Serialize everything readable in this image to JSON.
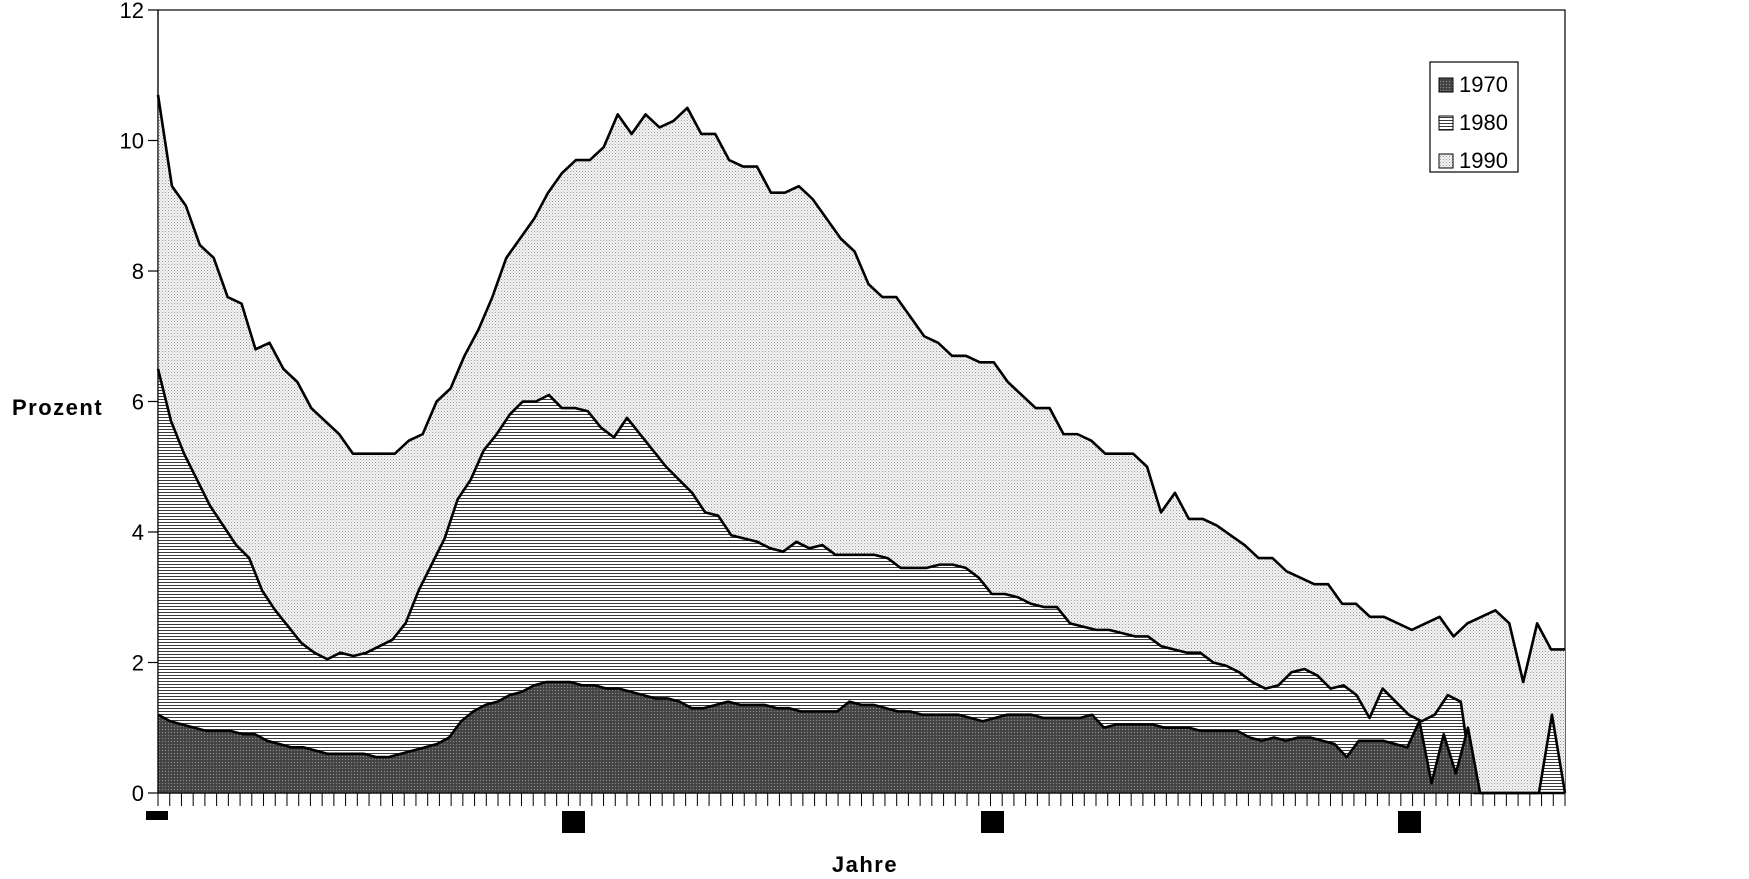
{
  "chart_data": {
    "type": "area",
    "stacked": false,
    "xlabel": "Jahre",
    "ylabel": "Prozent",
    "ylim": [
      0,
      12
    ],
    "yticks": [
      "0",
      "2",
      "4",
      "6",
      "8",
      "10",
      "12"
    ],
    "xticks": [],
    "grid": false,
    "legend": {
      "placement": "top-right"
    },
    "colors": {
      "1970": "#5a5a5a",
      "1980": "#e0e0e0",
      "1990": "#ececec"
    },
    "series": [
      {
        "name": "1970",
        "values": [
          1.2,
          1.1,
          1.05,
          1.0,
          0.95,
          0.95,
          0.95,
          0.9,
          0.9,
          0.8,
          0.75,
          0.7,
          0.7,
          0.65,
          0.6,
          0.6,
          0.6,
          0.6,
          0.55,
          0.55,
          0.6,
          0.65,
          0.7,
          0.75,
          0.85,
          1.1,
          1.25,
          1.35,
          1.4,
          1.5,
          1.55,
          1.65,
          1.7,
          1.7,
          1.7,
          1.65,
          1.65,
          1.6,
          1.6,
          1.55,
          1.5,
          1.45,
          1.45,
          1.4,
          1.3,
          1.3,
          1.35,
          1.4,
          1.35,
          1.35,
          1.35,
          1.3,
          1.3,
          1.25,
          1.25,
          1.25,
          1.25,
          1.4,
          1.35,
          1.35,
          1.3,
          1.25,
          1.25,
          1.2,
          1.2,
          1.2,
          1.2,
          1.15,
          1.1,
          1.15,
          1.2,
          1.2,
          1.2,
          1.15,
          1.15,
          1.15,
          1.15,
          1.2,
          1.0,
          1.05,
          1.05,
          1.05,
          1.05,
          1.0,
          1.0,
          1.0,
          0.95,
          0.95,
          0.95,
          0.95,
          0.85,
          0.8,
          0.85,
          0.8,
          0.85,
          0.85,
          0.8,
          0.75,
          0.55,
          0.8,
          0.8,
          0.8,
          0.75,
          0.7,
          1.1,
          0.15,
          0.9,
          0.3,
          1.0,
          0.0,
          0.0,
          0.0,
          0.0,
          0.0,
          0.0,
          0.0,
          0.0
        ]
      },
      {
        "name": "1980",
        "values": [
          6.5,
          5.7,
          5.2,
          4.8,
          4.4,
          4.1,
          3.8,
          3.6,
          3.1,
          2.8,
          2.55,
          2.3,
          2.15,
          2.05,
          2.15,
          2.1,
          2.15,
          2.25,
          2.35,
          2.6,
          3.1,
          3.5,
          3.9,
          4.5,
          4.8,
          5.25,
          5.5,
          5.8,
          6.0,
          6.0,
          6.1,
          5.9,
          5.9,
          5.85,
          5.6,
          5.45,
          5.75,
          5.5,
          5.25,
          5.0,
          4.8,
          4.6,
          4.3,
          4.25,
          3.95,
          3.9,
          3.85,
          3.75,
          3.7,
          3.85,
          3.75,
          3.8,
          3.65,
          3.65,
          3.65,
          3.65,
          3.6,
          3.45,
          3.45,
          3.45,
          3.5,
          3.5,
          3.45,
          3.3,
          3.05,
          3.05,
          3.0,
          2.9,
          2.85,
          2.85,
          2.6,
          2.55,
          2.5,
          2.5,
          2.45,
          2.4,
          2.4,
          2.25,
          2.2,
          2.15,
          2.15,
          2.0,
          1.95,
          1.85,
          1.7,
          1.6,
          1.65,
          1.85,
          1.9,
          1.8,
          1.6,
          1.65,
          1.5,
          1.15,
          1.6,
          1.4,
          1.2,
          1.1,
          1.2,
          1.5,
          1.4,
          0.0,
          0.0,
          0.0,
          0.0,
          0.0,
          0.0,
          1.2,
          0.0
        ]
      },
      {
        "name": "1990",
        "values": [
          10.7,
          9.3,
          9.0,
          8.4,
          8.2,
          7.6,
          7.5,
          6.8,
          6.9,
          6.5,
          6.3,
          5.9,
          5.7,
          5.5,
          5.2,
          5.2,
          5.2,
          5.2,
          5.4,
          5.5,
          6.0,
          6.2,
          6.7,
          7.1,
          7.6,
          8.2,
          8.5,
          8.8,
          9.2,
          9.5,
          9.7,
          9.7,
          9.9,
          10.4,
          10.1,
          10.4,
          10.2,
          10.3,
          10.5,
          10.1,
          10.1,
          9.7,
          9.6,
          9.6,
          9.2,
          9.2,
          9.3,
          9.1,
          8.8,
          8.5,
          8.3,
          7.8,
          7.6,
          7.6,
          7.3,
          7.0,
          6.9,
          6.7,
          6.7,
          6.6,
          6.6,
          6.3,
          6.1,
          5.9,
          5.9,
          5.5,
          5.5,
          5.4,
          5.2,
          5.2,
          5.2,
          5.0,
          4.3,
          4.6,
          4.2,
          4.2,
          4.1,
          3.95,
          3.8,
          3.6,
          3.6,
          3.4,
          3.3,
          3.2,
          3.2,
          2.9,
          2.9,
          2.7,
          2.7,
          2.6,
          2.5,
          2.6,
          2.7,
          2.4,
          2.6,
          2.7,
          2.8,
          2.6,
          1.7,
          2.6,
          2.2,
          2.2
        ]
      }
    ]
  }
}
